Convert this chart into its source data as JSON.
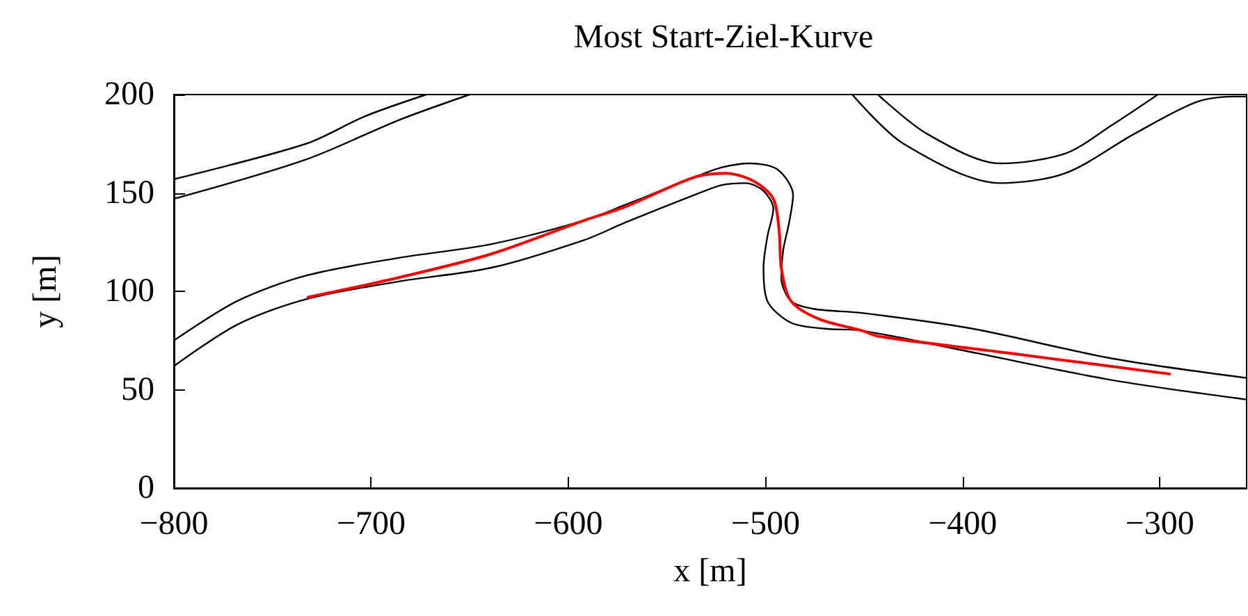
{
  "chart_data": {
    "type": "line",
    "title": "Most Start-Ziel-Kurve",
    "xlabel": "x [m]",
    "ylabel": "y [m]",
    "xlim": [
      -800,
      -256
    ],
    "xticks": [
      -800,
      -700,
      -600,
      -500,
      -400,
      -300
    ],
    "ylim": [
      0,
      200
    ],
    "yticks": [
      0,
      50,
      100,
      150,
      200
    ],
    "grid": false,
    "marker": "none",
    "line_style": "solid",
    "series": [
      {
        "color": "#000000",
        "x": [
          -800,
          -733,
          -703,
          -672
        ],
        "values": [
          157,
          175,
          189,
          200
        ]
      },
      {
        "color": "#000000",
        "x": [
          -800,
          -733,
          -686,
          -650
        ],
        "values": [
          147,
          167,
          187,
          200
        ]
      },
      {
        "color": "#000000",
        "x": [
          -800,
          -768,
          -733,
          -686,
          -639,
          -592,
          -571,
          -536,
          -522,
          -508,
          -494,
          -486,
          -488,
          -491,
          -492,
          -487,
          -475,
          -451,
          -395,
          -325,
          -256
        ],
        "values": [
          75,
          95,
          108,
          117,
          124,
          136,
          144,
          158,
          163,
          165,
          162,
          149,
          135,
          121,
          107,
          95,
          91,
          89,
          81,
          66,
          56
        ]
      },
      {
        "color": "#000000",
        "x": [
          -800,
          -768,
          -733,
          -686,
          -639,
          -592,
          -571,
          -536,
          -522,
          -510,
          -501,
          -496,
          -499,
          -501,
          -499,
          -487,
          -470,
          -451,
          -395,
          -325,
          -256
        ],
        "values": [
          62,
          83,
          96,
          105,
          112,
          126,
          135,
          149,
          154,
          155,
          151,
          142,
          128,
          112,
          95,
          84,
          81,
          80,
          69,
          55,
          45
        ]
      },
      {
        "color": "#000000",
        "x": [
          -456,
          -430,
          -381,
          -348,
          -313,
          -282,
          -263,
          -256
        ],
        "values": [
          200,
          175,
          155,
          160,
          180,
          196,
          199,
          199
        ]
      },
      {
        "color": "#000000",
        "x": [
          -443,
          -418,
          -381,
          -348,
          -325,
          -301
        ],
        "values": [
          200,
          180,
          165,
          170,
          184,
          200
        ]
      },
      {
        "color": "#ff0000",
        "x": [
          -732,
          -686,
          -639,
          -592,
          -571,
          -536,
          -520,
          -506,
          -496,
          -493,
          -492,
          -487,
          -473,
          -451,
          -442,
          -372,
          -295
        ],
        "values": [
          97,
          107,
          119,
          136,
          143,
          158,
          160,
          156,
          147,
          130,
          112,
          95,
          86,
          80,
          77,
          68,
          58
        ]
      }
    ]
  }
}
